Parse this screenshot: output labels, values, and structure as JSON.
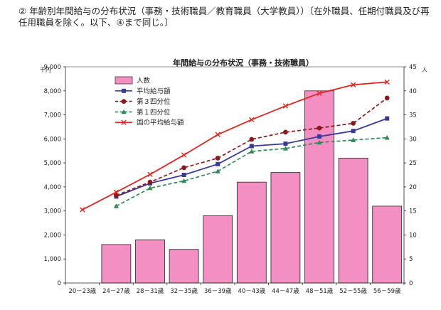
{
  "heading": "② 年齢別年間給与の分布状況（事務・技術職員／教育職員（大学教員））〔在外職員、任期付職員及び再任用職員を除く。以下、④まで同じ。〕",
  "chart_data": {
    "type": "bar",
    "title": "年間給与の分布状況（事務・技術職員）",
    "categories": [
      "20－23歳",
      "24－27歳",
      "28－31歳",
      "32－35歳",
      "36－39歳",
      "40－43歳",
      "44－47歳",
      "48－51歳",
      "52－55歳",
      "56－59歳"
    ],
    "y_left": {
      "unit": "千円",
      "range": [
        0,
        9000
      ],
      "ticks": [
        "0",
        "1,000",
        "2,000",
        "3,000",
        "4,000",
        "5,000",
        "6,000",
        "7,000",
        "8,000",
        "9,000"
      ]
    },
    "y_right": {
      "unit": "人",
      "range": [
        0,
        45
      ],
      "ticks": [
        "0",
        "5",
        "10",
        "15",
        "20",
        "25",
        "30",
        "35",
        "40",
        "45"
      ]
    },
    "bars": {
      "name": "人数",
      "axis": "right",
      "color": "#f48fc3",
      "values": [
        0,
        8,
        9,
        7,
        14,
        21,
        23,
        40,
        26,
        16
      ]
    },
    "series": [
      {
        "name": "平均給与額",
        "axis": "left",
        "color": "#3a3a9c",
        "style": "solid",
        "marker": "square",
        "values": [
          null,
          3600,
          4150,
          4500,
          4950,
          5700,
          5800,
          6100,
          6330,
          6850
        ]
      },
      {
        "name": "第３四分位",
        "axis": "left",
        "color": "#8b1a1a",
        "style": "dashed",
        "marker": "circle",
        "values": [
          null,
          3650,
          4200,
          4800,
          5200,
          5980,
          6280,
          6450,
          6650,
          7700
        ]
      },
      {
        "name": "第１四分位",
        "axis": "left",
        "color": "#2e8b57",
        "style": "dashed",
        "marker": "triangle",
        "values": [
          null,
          3200,
          3950,
          4250,
          4650,
          5480,
          5600,
          5850,
          5950,
          6050
        ]
      },
      {
        "name": "国の平均給与額",
        "axis": "left",
        "color": "#e0261f",
        "style": "solid",
        "marker": "x",
        "values": [
          3050,
          3780,
          4520,
          5330,
          6180,
          6800,
          7370,
          7900,
          8250,
          8370
        ]
      }
    ],
    "legend_position": "top-left-inside",
    "grid": false
  }
}
